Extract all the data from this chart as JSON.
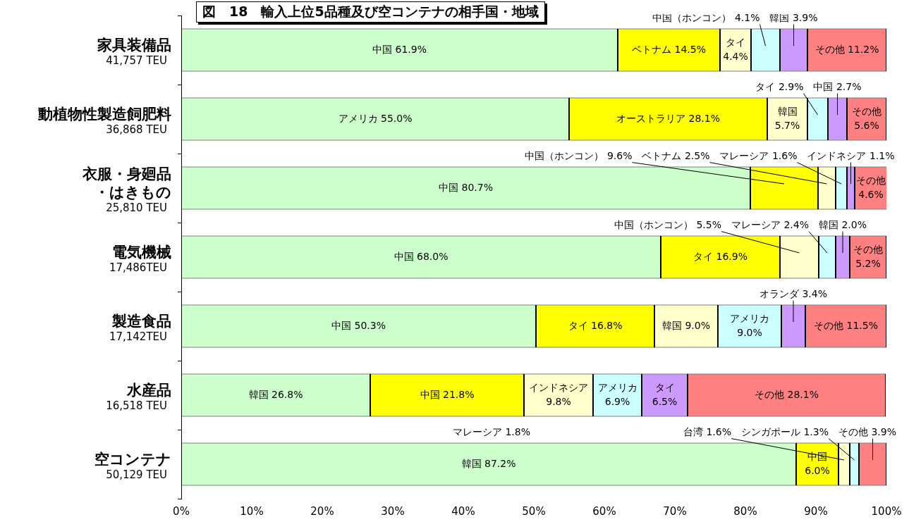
{
  "chart_data": {
    "type": "bar",
    "orientation": "horizontal",
    "stacked": true,
    "title": "図　18　輸入上位5品種及び空コンテナの相手国・地域",
    "categories": [
      "家具装備品\n41,757 TEU",
      "動植物性製造飼肥料\n36,868 TEU",
      "衣服・身廻品・はきもの\n25,810 TEU",
      "電気機械\n17,486TEU",
      "製造食品\n17,142TEU",
      "水産品\n16,518 TEU",
      "空コンテナ\n50,129 TEU"
    ],
    "series": [
      {
        "color": "#ccffcc",
        "values": [
          61.9,
          55.0,
          80.7,
          68.0,
          50.3,
          26.8,
          87.2
        ],
        "value_labels": [
          "中国 61.9%",
          "アメリカ 55.0%",
          "中国 80.7%",
          "中国 68.0%",
          "中国 50.3%",
          "韓国 26.8%",
          "韓国 87.2%"
        ]
      },
      {
        "color": "#ffff00",
        "values": [
          14.5,
          28.1,
          9.6,
          16.9,
          16.8,
          21.8,
          6.0
        ],
        "value_labels": [
          "ベトナム 14.5%",
          "オーストラリア 28.1%",
          "中国（ホンコン） 9.6%",
          "タイ 16.9%",
          "タイ 16.8%",
          "中国 21.8%",
          "中国 6.0%"
        ]
      },
      {
        "color": "#ffffcc",
        "values": [
          4.4,
          5.7,
          2.5,
          5.5,
          9.0,
          9.8,
          1.6
        ],
        "value_labels": [
          "タイ 4.4%",
          "韓国 5.7%",
          "ベトナム 2.5%",
          "中国（ホンコン） 5.5%",
          "韓国 9.0%",
          "インドネシア 9.8%",
          "台湾 1.6%"
        ]
      },
      {
        "color": "#ccffff",
        "values": [
          4.1,
          2.9,
          1.6,
          2.4,
          9.0,
          6.9,
          1.3
        ],
        "value_labels": [
          "中国（ホンコン） 4.1%",
          "タイ 2.9%",
          "マレーシア 1.6%",
          "マレーシア 2.4%",
          "アメリカ 9.0%",
          "アメリカ 6.9%",
          "シンガポール 1.3%"
        ]
      },
      {
        "color": "#cc99ff",
        "values": [
          3.9,
          2.7,
          1.1,
          2.0,
          3.4,
          6.5,
          null
        ],
        "value_labels": [
          "韓国 3.9%",
          "中国 2.7%",
          "インドネシア 1.1%",
          "韓国 2.0%",
          "オランダ 3.4%",
          "タイ 6.5%",
          null
        ]
      },
      {
        "color": "#ff8080",
        "values": [
          11.2,
          5.6,
          4.6,
          5.2,
          11.5,
          28.1,
          3.9
        ],
        "value_labels": [
          "その他 11.2%",
          "その他 5.6%",
          "その他 4.6%",
          "その他 5.2%",
          "その他 11.5%",
          "その他 28.1%",
          "その他 3.9%"
        ]
      }
    ],
    "xlim": [
      0,
      100
    ],
    "xticks": [
      {
        "value": 0,
        "label": "0%"
      },
      {
        "value": 10,
        "label": "10%"
      },
      {
        "value": 20,
        "label": "20%"
      },
      {
        "value": 30,
        "label": "30%"
      },
      {
        "value": 40,
        "label": "40%"
      },
      {
        "value": 50,
        "label": "50%"
      },
      {
        "value": 60,
        "label": "60%"
      },
      {
        "value": 70,
        "label": "70%"
      },
      {
        "value": 80,
        "label": "80%"
      },
      {
        "value": 90,
        "label": "90%"
      },
      {
        "value": 100,
        "label": "100%"
      }
    ],
    "annotations": [
      "マレーシア 1.8%"
    ]
  }
}
